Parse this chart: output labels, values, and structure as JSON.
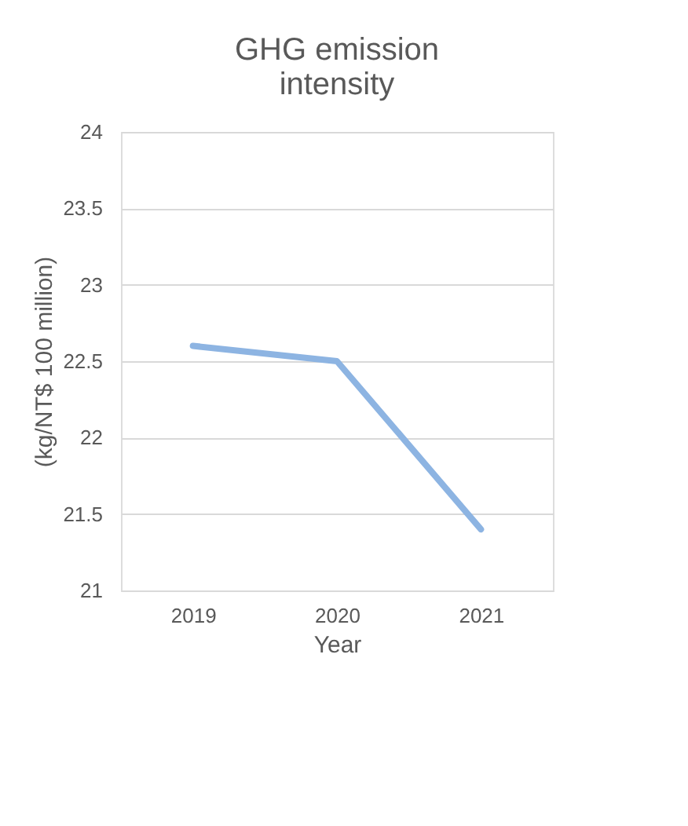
{
  "chart_data": {
    "type": "line",
    "title": "GHG emission intensity",
    "xlabel": "Year",
    "ylabel": "(kg/NT$ 100 million)",
    "categories": [
      "2019",
      "2020",
      "2021"
    ],
    "series": [
      {
        "color": "#8db4e2",
        "values": [
          22.6,
          22.5,
          21.4
        ]
      }
    ],
    "ylim": [
      21,
      24
    ],
    "yticks": [
      21,
      21.5,
      22,
      22.5,
      23,
      23.5,
      24
    ],
    "grid": "y",
    "legend": false,
    "marker": "none",
    "line_style": "solid"
  }
}
